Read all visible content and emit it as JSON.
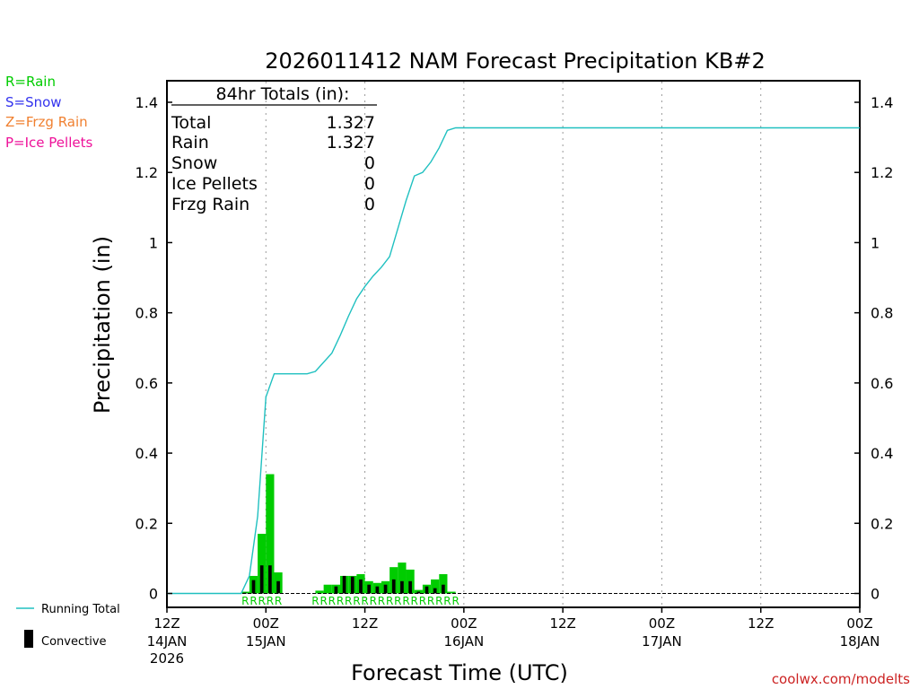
{
  "chart_data": {
    "type": "bar",
    "title": "2026011412 NAM Forecast Precipitation KB#2",
    "xlabel": "Forecast Time (UTC)",
    "ylabel": "Precipitation (in)",
    "ylim": [
      0,
      1.4
    ],
    "xlim_hours": [
      0,
      84
    ],
    "yticks": [
      "0",
      "0.2",
      "0.4",
      "0.6",
      "0.8",
      "1",
      "1.2",
      "1.4"
    ],
    "xticks": [
      {
        "hour": 0,
        "label": "12Z",
        "date": "14JAN",
        "year": "2026"
      },
      {
        "hour": 12,
        "label": "00Z",
        "date": "15JAN",
        "year": ""
      },
      {
        "hour": 24,
        "label": "12Z",
        "date": "",
        "year": ""
      },
      {
        "hour": 36,
        "label": "00Z",
        "date": "16JAN",
        "year": ""
      },
      {
        "hour": 48,
        "label": "12Z",
        "date": "",
        "year": ""
      },
      {
        "hour": 60,
        "label": "00Z",
        "date": "17JAN",
        "year": ""
      },
      {
        "hour": 72,
        "label": "12Z",
        "date": "",
        "year": ""
      },
      {
        "hour": 84,
        "label": "00Z",
        "date": "18JAN",
        "year": ""
      }
    ],
    "hourly_precip": {
      "hours": [
        9,
        10,
        11,
        12,
        13,
        18,
        19,
        20,
        21,
        22,
        23,
        24,
        25,
        26,
        27,
        28,
        29,
        30,
        31,
        32,
        33,
        34,
        35,
        36
      ],
      "total": [
        0.005,
        0.05,
        0.17,
        0.34,
        0.06,
        0.008,
        0.025,
        0.025,
        0.05,
        0.05,
        0.055,
        0.035,
        0.03,
        0.035,
        0.075,
        0.088,
        0.068,
        0.01,
        0.025,
        0.04,
        0.055,
        0.005,
        0,
        0
      ],
      "convective": [
        0.002,
        0.038,
        0.08,
        0.08,
        0.035,
        0,
        0,
        0.02,
        0.05,
        0.048,
        0.04,
        0.025,
        0.02,
        0.025,
        0.04,
        0.035,
        0.035,
        0.005,
        0.02,
        0.015,
        0.025,
        0,
        0,
        0
      ]
    },
    "running_total": {
      "hours": [
        0,
        9,
        10,
        11,
        11.5,
        12,
        13,
        14,
        17,
        18,
        20,
        21,
        22,
        23,
        24,
        25,
        26,
        27,
        28,
        29,
        30,
        31,
        32,
        33,
        34,
        35,
        84
      ],
      "values": [
        0,
        0,
        0.05,
        0.22,
        0.39,
        0.56,
        0.626,
        0.626,
        0.626,
        0.633,
        0.685,
        0.735,
        0.79,
        0.84,
        0.875,
        0.905,
        0.93,
        0.96,
        1.04,
        1.12,
        1.19,
        1.2,
        1.23,
        1.27,
        1.32,
        1.327,
        1.327
      ]
    },
    "ptype_markers": {
      "hours": [
        9.5,
        10.5,
        11.5,
        12.5,
        13.5,
        18,
        19,
        20,
        21,
        22,
        23,
        24,
        25,
        26,
        27,
        28,
        29,
        30,
        31,
        32,
        33,
        34,
        35
      ],
      "letter": "R"
    },
    "colors": {
      "precip": "#00cc00",
      "convective": "#000000",
      "running_total": "#20c0c0",
      "rain": "#00cc00",
      "snow": "#3333ee",
      "frzg": "#f08030",
      "ice": "#ee1199"
    }
  },
  "type_legend": {
    "rain": "R=Rain",
    "snow": "S=Snow",
    "frzg": "Z=Frzg Rain",
    "ice": "P=Ice Pellets"
  },
  "totals_box": {
    "header": "84hr Totals (in):",
    "rows": [
      {
        "label": "Total",
        "value": "1.327"
      },
      {
        "label": "Rain",
        "value": "1.327"
      },
      {
        "label": "Snow",
        "value": "0"
      },
      {
        "label": "Ice Pellets",
        "value": "0"
      },
      {
        "label": "Frzg Rain",
        "value": "0"
      }
    ]
  },
  "series_legend": {
    "running": "Running Total",
    "convective": "Convective"
  },
  "credit": "coolwx.com/modelts"
}
